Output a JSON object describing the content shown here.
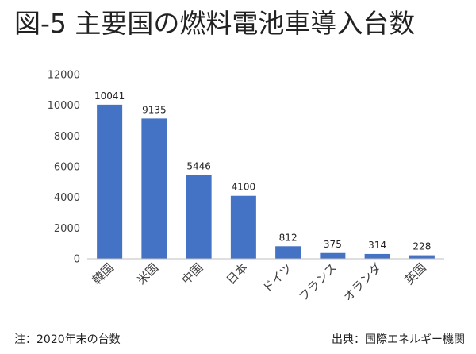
{
  "figure": {
    "title": "図-5 主要国の燃料電池車導入台数",
    "note": "注：2020年末の台数",
    "source": "出典：国際エネルギー機関"
  },
  "colors": {
    "bar": "#4472c4",
    "axis": "#bfbfbf",
    "text": "#404040"
  },
  "chart_data": {
    "type": "bar",
    "title": "図-5 主要国の燃料電池車導入台数",
    "xlabel": "",
    "ylabel": "",
    "categories": [
      "韓国",
      "米国",
      "中国",
      "日本",
      "ドイツ",
      "フランス",
      "オランダ",
      "英国"
    ],
    "values": [
      10041,
      9135,
      5446,
      4100,
      812,
      375,
      314,
      228
    ],
    "data_labels": [
      "10041",
      "9135",
      "5446",
      "4100",
      "812",
      "375",
      "314",
      "228"
    ],
    "yticks": [
      0,
      2000,
      4000,
      6000,
      8000,
      10000,
      12000
    ],
    "ylim": [
      0,
      12000
    ],
    "grid": false,
    "legend": "none"
  }
}
